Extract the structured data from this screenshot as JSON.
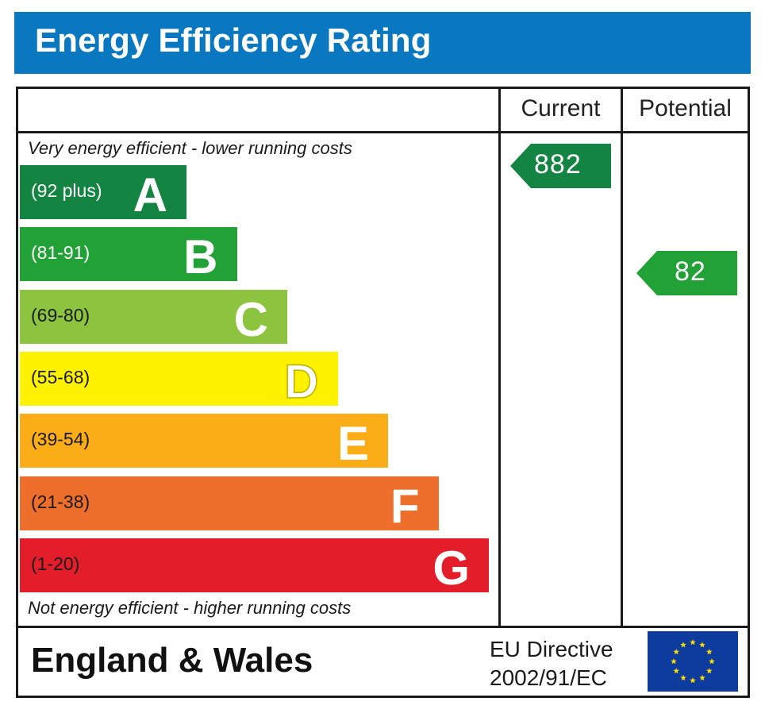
{
  "header": {
    "title": "Energy Efficiency Rating"
  },
  "columns": {
    "current": "Current",
    "potential": "Potential"
  },
  "notes": {
    "top": "Very energy efficient - lower running costs",
    "bottom": "Not energy efficient - higher running costs"
  },
  "chart_data": {
    "type": "bar",
    "title": "Energy Efficiency Rating",
    "categories": [
      "A",
      "B",
      "C",
      "D",
      "E",
      "F",
      "G"
    ],
    "bands": [
      {
        "letter": "A",
        "range": "(92 plus)",
        "color": "#138441"
      },
      {
        "letter": "B",
        "range": "(81-91)",
        "color": "#21a136"
      },
      {
        "letter": "C",
        "range": "(69-80)",
        "color": "#8cc43f"
      },
      {
        "letter": "D",
        "range": "(55-68)",
        "color": "#fff200"
      },
      {
        "letter": "E",
        "range": "(39-54)",
        "color": "#fbad18"
      },
      {
        "letter": "F",
        "range": "(21-38)",
        "color": "#ee6f2c"
      },
      {
        "letter": "G",
        "range": "(1-20)",
        "color": "#e41d2a"
      }
    ],
    "current": {
      "value": "882",
      "band": "A",
      "color": "#138441"
    },
    "potential": {
      "value": "82",
      "band": "B",
      "color": "#21a136"
    }
  },
  "footer": {
    "region": "England & Wales",
    "directive_line1": "EU Directive",
    "directive_line2": "2002/91/EC",
    "flag_icon": "eu-flag-icon"
  }
}
